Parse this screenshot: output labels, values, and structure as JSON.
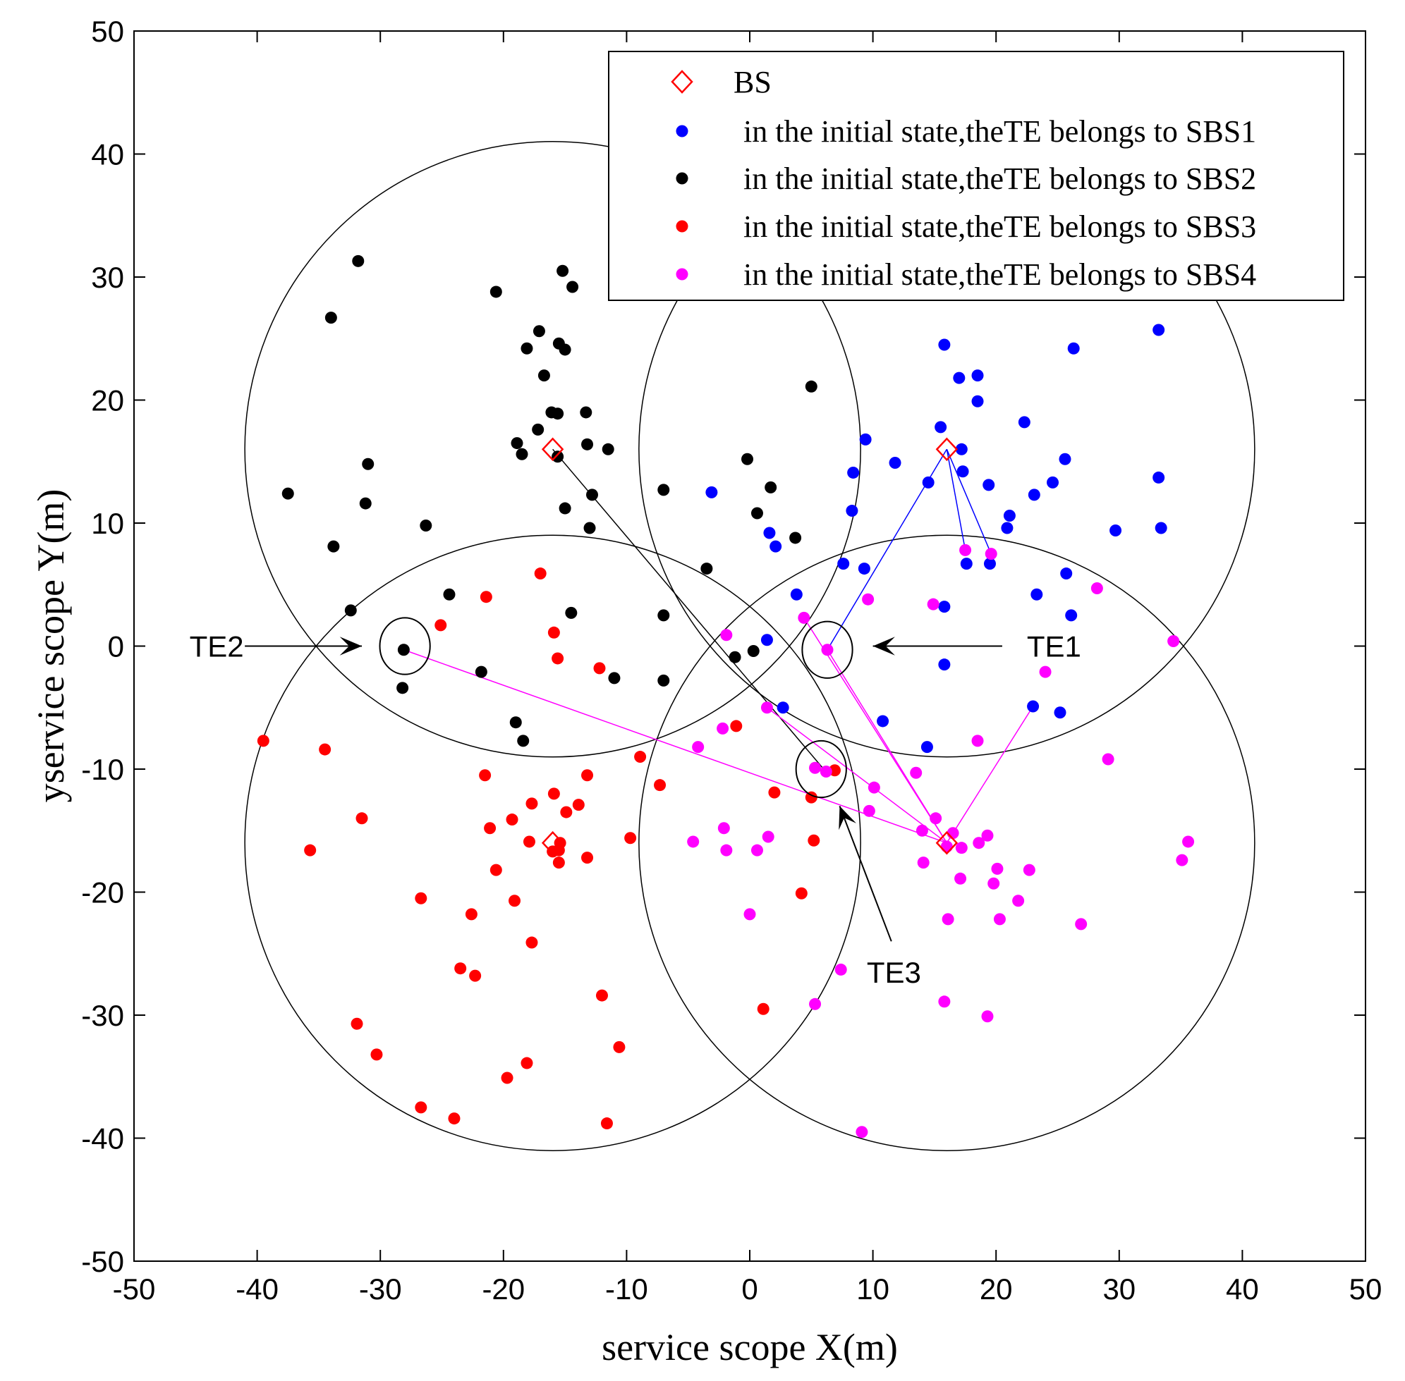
{
  "chart_data": {
    "type": "scatter",
    "xlabel": "service scope X(m)",
    "ylabel": "yservice scope Y(m)",
    "xlim": [
      -50,
      50
    ],
    "ylim": [
      -50,
      50
    ],
    "xticks": [
      -50,
      -40,
      -30,
      -20,
      -10,
      0,
      10,
      20,
      30,
      40,
      50
    ],
    "yticks": [
      -50,
      -40,
      -30,
      -20,
      -10,
      0,
      10,
      20,
      30,
      40,
      50
    ],
    "legend_position": "top-right",
    "colors": {
      "SBS1": "#0000ff",
      "SBS2": "#000000",
      "SBS3": "#ff0000",
      "SBS4": "#ff00ff",
      "BS": "#ff0000"
    },
    "base_stations": {
      "name": "BS",
      "marker": "diamond",
      "points": [
        [
          -16,
          16
        ],
        [
          16,
          16
        ],
        [
          -16,
          -16
        ],
        [
          16,
          -16
        ]
      ]
    },
    "coverage_radius": 25,
    "series": [
      {
        "name": "in the initial state,theTE belongs to SBS1",
        "key": "SBS1",
        "points": [
          [
            15.8,
            24.5
          ],
          [
            33.2,
            25.7
          ],
          [
            26.3,
            24.2
          ],
          [
            17,
            21.8
          ],
          [
            18.5,
            22
          ],
          [
            18.5,
            19.9
          ],
          [
            15.5,
            17.8
          ],
          [
            22.3,
            18.2
          ],
          [
            17.2,
            16
          ],
          [
            9.4,
            16.8
          ],
          [
            25.6,
            15.2
          ],
          [
            11.8,
            14.9
          ],
          [
            17.3,
            14.2
          ],
          [
            8.4,
            14.1
          ],
          [
            33.2,
            13.7
          ],
          [
            14.5,
            13.3
          ],
          [
            24.6,
            13.3
          ],
          [
            19.4,
            13.1
          ],
          [
            23.1,
            12.3
          ],
          [
            -3.1,
            12.5
          ],
          [
            8.3,
            11
          ],
          [
            21.1,
            10.6
          ],
          [
            20.9,
            9.6
          ],
          [
            29.7,
            9.4
          ],
          [
            33.4,
            9.6
          ],
          [
            1.6,
            9.2
          ],
          [
            2.1,
            8.1
          ],
          [
            17.6,
            6.7
          ],
          [
            19.5,
            6.7
          ],
          [
            7.6,
            6.7
          ],
          [
            9.3,
            6.3
          ],
          [
            25.7,
            5.9
          ],
          [
            23.3,
            4.2
          ],
          [
            26.1,
            2.5
          ],
          [
            3.8,
            4.2
          ],
          [
            15.8,
            3.2
          ],
          [
            1.4,
            0.5
          ],
          [
            15.8,
            -1.5
          ],
          [
            2.7,
            -5
          ],
          [
            23,
            -4.9
          ],
          [
            25.2,
            -5.4
          ],
          [
            10.8,
            -6.1
          ],
          [
            14.4,
            -8.2
          ]
        ]
      },
      {
        "name": "in the initial state,theTE belongs to SBS2",
        "key": "SBS2",
        "points": [
          [
            -31.8,
            31.3
          ],
          [
            -15.2,
            30.5
          ],
          [
            -14.4,
            29.2
          ],
          [
            -20.6,
            28.8
          ],
          [
            -34,
            26.7
          ],
          [
            -17.1,
            25.6
          ],
          [
            -15.5,
            24.6
          ],
          [
            -18.1,
            24.2
          ],
          [
            -15,
            24.1
          ],
          [
            -16.7,
            22
          ],
          [
            -16.1,
            19
          ],
          [
            -15.6,
            18.9
          ],
          [
            -13.3,
            19
          ],
          [
            -17.2,
            17.6
          ],
          [
            5,
            21.1
          ],
          [
            -18.9,
            16.5
          ],
          [
            -13.2,
            16.4
          ],
          [
            -11.5,
            16
          ],
          [
            -18.5,
            15.6
          ],
          [
            -15.6,
            15.4
          ],
          [
            -31,
            14.8
          ],
          [
            -7,
            12.7
          ],
          [
            -0.2,
            15.2
          ],
          [
            -37.5,
            12.4
          ],
          [
            1.7,
            12.9
          ],
          [
            -12.8,
            12.3
          ],
          [
            -31.2,
            11.6
          ],
          [
            -15,
            11.2
          ],
          [
            0.6,
            10.8
          ],
          [
            -26.3,
            9.8
          ],
          [
            -13,
            9.6
          ],
          [
            3.7,
            8.8
          ],
          [
            -33.8,
            8.1
          ],
          [
            -3.5,
            6.3
          ],
          [
            -24.4,
            4.2
          ],
          [
            -32.4,
            2.9
          ],
          [
            -14.5,
            2.7
          ],
          [
            -7,
            2.5
          ],
          [
            -28.1,
            -0.3
          ],
          [
            0.3,
            -0.4
          ],
          [
            -1.2,
            -0.9
          ],
          [
            -21.8,
            -2.1
          ],
          [
            -11,
            -2.6
          ],
          [
            -7,
            -2.8
          ],
          [
            -28.2,
            -3.4
          ],
          [
            -19,
            -6.2
          ],
          [
            -18.4,
            -7.7
          ]
        ]
      },
      {
        "name": "in the initial state,theTE belongs to SBS3",
        "key": "SBS3",
        "points": [
          [
            -17,
            5.9
          ],
          [
            -21.4,
            4
          ],
          [
            -25.1,
            1.7
          ],
          [
            -15.9,
            1.1
          ],
          [
            -15.6,
            -1
          ],
          [
            -12.2,
            -1.8
          ],
          [
            -1.1,
            -6.5
          ],
          [
            -39.5,
            -7.7
          ],
          [
            -34.5,
            -8.4
          ],
          [
            -8.9,
            -9
          ],
          [
            -21.5,
            -10.5
          ],
          [
            -13.2,
            -10.5
          ],
          [
            6.9,
            -10.1
          ],
          [
            -7.3,
            -11.3
          ],
          [
            -15.9,
            -12
          ],
          [
            2,
            -11.9
          ],
          [
            -17.7,
            -12.8
          ],
          [
            5,
            -12.3
          ],
          [
            -31.5,
            -14
          ],
          [
            -19.3,
            -14.1
          ],
          [
            -14.9,
            -13.5
          ],
          [
            -13.9,
            -12.9
          ],
          [
            -21.1,
            -14.8
          ],
          [
            -15.4,
            -16
          ],
          [
            -16,
            -16.7
          ],
          [
            -15.5,
            -16.6
          ],
          [
            -17.9,
            -15.9
          ],
          [
            -9.7,
            -15.6
          ],
          [
            5.2,
            -15.8
          ],
          [
            -35.7,
            -16.6
          ],
          [
            -13.2,
            -17.2
          ],
          [
            -15.5,
            -17.6
          ],
          [
            -20.6,
            -18.2
          ],
          [
            -26.7,
            -20.5
          ],
          [
            -19.1,
            -20.7
          ],
          [
            4.2,
            -20.1
          ],
          [
            -22.6,
            -21.8
          ],
          [
            -17.7,
            -24.1
          ],
          [
            -23.5,
            -26.2
          ],
          [
            -22.3,
            -26.8
          ],
          [
            -12,
            -28.4
          ],
          [
            1.1,
            -29.5
          ],
          [
            -31.9,
            -30.7
          ],
          [
            -30.3,
            -33.2
          ],
          [
            -10.6,
            -32.6
          ],
          [
            -18.1,
            -33.9
          ],
          [
            -19.7,
            -35.1
          ],
          [
            -26.7,
            -37.5
          ],
          [
            -24,
            -38.4
          ],
          [
            -11.6,
            -38.8
          ]
        ]
      },
      {
        "name": "in the initial state,theTE belongs to SBS4",
        "key": "SBS4",
        "points": [
          [
            17.5,
            7.8
          ],
          [
            19.6,
            7.5
          ],
          [
            28.2,
            4.7
          ],
          [
            9.6,
            3.8
          ],
          [
            14.9,
            3.4
          ],
          [
            4.4,
            2.3
          ],
          [
            -1.9,
            0.9
          ],
          [
            34.4,
            0.4
          ],
          [
            6.3,
            -0.3
          ],
          [
            24,
            -2.1
          ],
          [
            1.4,
            -5
          ],
          [
            -2.2,
            -6.7
          ],
          [
            -4.2,
            -8.2
          ],
          [
            18.5,
            -7.7
          ],
          [
            29.1,
            -9.2
          ],
          [
            5.3,
            -9.9
          ],
          [
            6.2,
            -10.2
          ],
          [
            13.5,
            -10.3
          ],
          [
            10.1,
            -11.5
          ],
          [
            9.7,
            -13.4
          ],
          [
            15.1,
            -14
          ],
          [
            14,
            -15
          ],
          [
            16.5,
            -15.2
          ],
          [
            -2.1,
            -14.8
          ],
          [
            1.5,
            -15.5
          ],
          [
            19.3,
            -15.4
          ],
          [
            35.6,
            -15.9
          ],
          [
            -4.6,
            -15.9
          ],
          [
            18.6,
            -16
          ],
          [
            16,
            -16.3
          ],
          [
            17.2,
            -16.4
          ],
          [
            -1.9,
            -16.6
          ],
          [
            0.6,
            -16.6
          ],
          [
            14.1,
            -17.6
          ],
          [
            35.1,
            -17.4
          ],
          [
            22.7,
            -18.2
          ],
          [
            20.1,
            -18.1
          ],
          [
            17.1,
            -18.9
          ],
          [
            19.8,
            -19.3
          ],
          [
            21.8,
            -20.7
          ],
          [
            0,
            -21.8
          ],
          [
            16.1,
            -22.2
          ],
          [
            20.3,
            -22.2
          ],
          [
            26.9,
            -22.6
          ],
          [
            7.4,
            -26.3
          ],
          [
            15.8,
            -28.9
          ],
          [
            5.3,
            -29.1
          ],
          [
            19.3,
            -30.1
          ],
          [
            9.1,
            -39.5
          ]
        ]
      }
    ],
    "connection_lines": [
      {
        "color": "#0000ff",
        "from": [
          16,
          16
        ],
        "to": [
          6.3,
          -0.3
        ]
      },
      {
        "color": "#0000ff",
        "from": [
          16,
          16
        ],
        "to": [
          17.5,
          7.8
        ]
      },
      {
        "color": "#0000ff",
        "from": [
          16,
          16
        ],
        "to": [
          19.6,
          7.5
        ]
      },
      {
        "color": "#000000",
        "from": [
          -16,
          16
        ],
        "to": [
          6,
          -10
        ]
      },
      {
        "color": "#ff00ff",
        "from": [
          16,
          -16
        ],
        "to": [
          6.3,
          -0.3
        ]
      },
      {
        "color": "#ff00ff",
        "from": [
          16,
          -16
        ],
        "to": [
          -28.1,
          -0.3
        ]
      },
      {
        "color": "#ff00ff",
        "from": [
          16,
          -16
        ],
        "to": [
          4.4,
          2.3
        ]
      },
      {
        "color": "#ff00ff",
        "from": [
          16,
          -16
        ],
        "to": [
          1.4,
          -5
        ]
      },
      {
        "color": "#ff00ff",
        "from": [
          16,
          -16
        ],
        "to": [
          23,
          -4.9
        ]
      }
    ],
    "highlight_circles": [
      {
        "center": [
          -28,
          0
        ],
        "radius": 2
      },
      {
        "center": [
          6.3,
          -0.3
        ],
        "radius": 2
      },
      {
        "center": [
          5.8,
          -10
        ],
        "radius": 2
      }
    ],
    "annotations": [
      {
        "text": "TE2",
        "text_pos": [
          -45.5,
          0
        ],
        "arrow_from": [
          -41,
          0
        ],
        "arrow_to": [
          -31.5,
          0
        ]
      },
      {
        "text": "TE1",
        "text_pos": [
          22.5,
          0
        ],
        "arrow_from": [
          20.5,
          0
        ],
        "arrow_to": [
          10,
          0
        ]
      },
      {
        "text": "TE3",
        "text_pos": [
          9.5,
          -26.5
        ],
        "arrow_from": [
          11.5,
          -24
        ],
        "arrow_to": [
          7.3,
          -13
        ]
      }
    ]
  }
}
